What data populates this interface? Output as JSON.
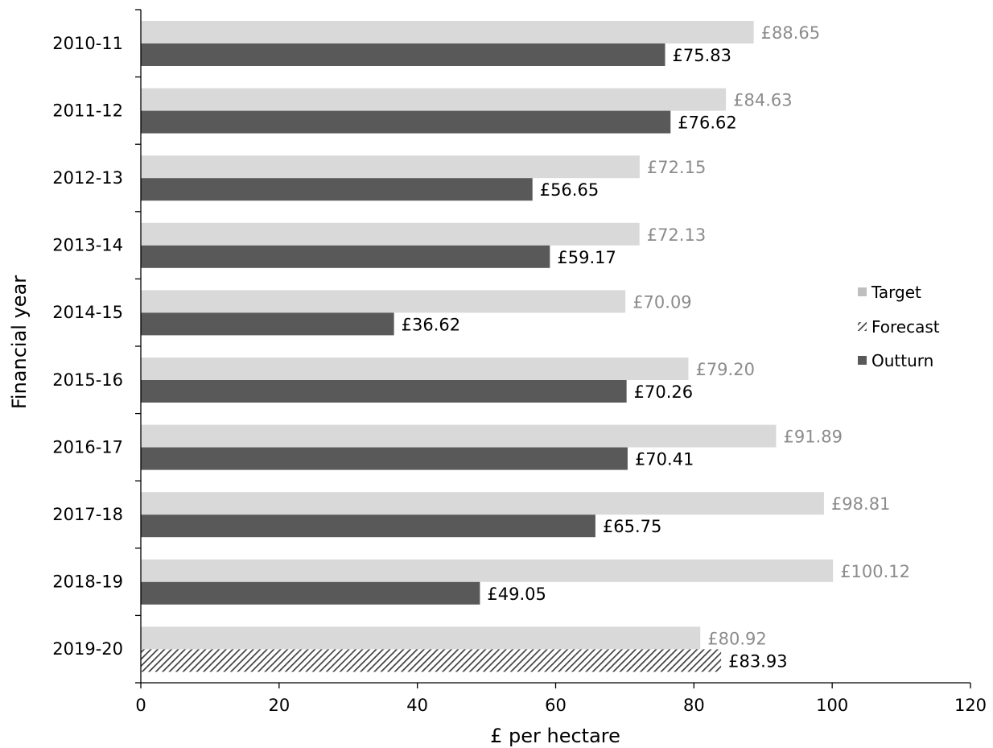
{
  "chart_data": {
    "type": "bar",
    "orientation": "horizontal",
    "title": "",
    "xlabel": "£ per hectare",
    "ylabel": "Financial year",
    "xlim": [
      0,
      120
    ],
    "x_ticks": [
      "0",
      "20",
      "40",
      "60",
      "80",
      "100",
      "120"
    ],
    "grid": false,
    "legend_position": "right",
    "categories": [
      "2010-11",
      "2011-12",
      "2012-13",
      "2013-14",
      "2014-15",
      "2015-16",
      "2016-17",
      "2017-18",
      "2018-19",
      "2019-20"
    ],
    "series": [
      {
        "name": "Target",
        "color": "#d9d9d9",
        "label_color": "#8c8c8c",
        "values": [
          88.65,
          84.63,
          72.15,
          72.13,
          70.09,
          79.2,
          91.89,
          98.81,
          100.12,
          80.92
        ],
        "labels": [
          "£88.65",
          "£84.63",
          "£72.15",
          "£72.13",
          "£70.09",
          "£79.20",
          "£91.89",
          "£98.81",
          "£100.12",
          "£80.92"
        ]
      },
      {
        "name": "Forecast",
        "color": "#404040",
        "pattern": "diagonal-hatch",
        "label_color": "#000000",
        "values": [
          null,
          null,
          null,
          null,
          null,
          null,
          null,
          null,
          null,
          83.93
        ],
        "labels": [
          "",
          "",
          "",
          "",
          "",
          "",
          "",
          "",
          "",
          "£83.93"
        ]
      },
      {
        "name": "Outturn",
        "color": "#595959",
        "label_color": "#000000",
        "values": [
          75.83,
          76.62,
          56.65,
          59.17,
          36.62,
          70.26,
          70.41,
          65.75,
          49.05,
          null
        ],
        "labels": [
          "£75.83",
          "£76.62",
          "£56.65",
          "£59.17",
          "£36.62",
          "£70.26",
          "£70.41",
          "£65.75",
          "£49.05",
          ""
        ]
      }
    ]
  }
}
